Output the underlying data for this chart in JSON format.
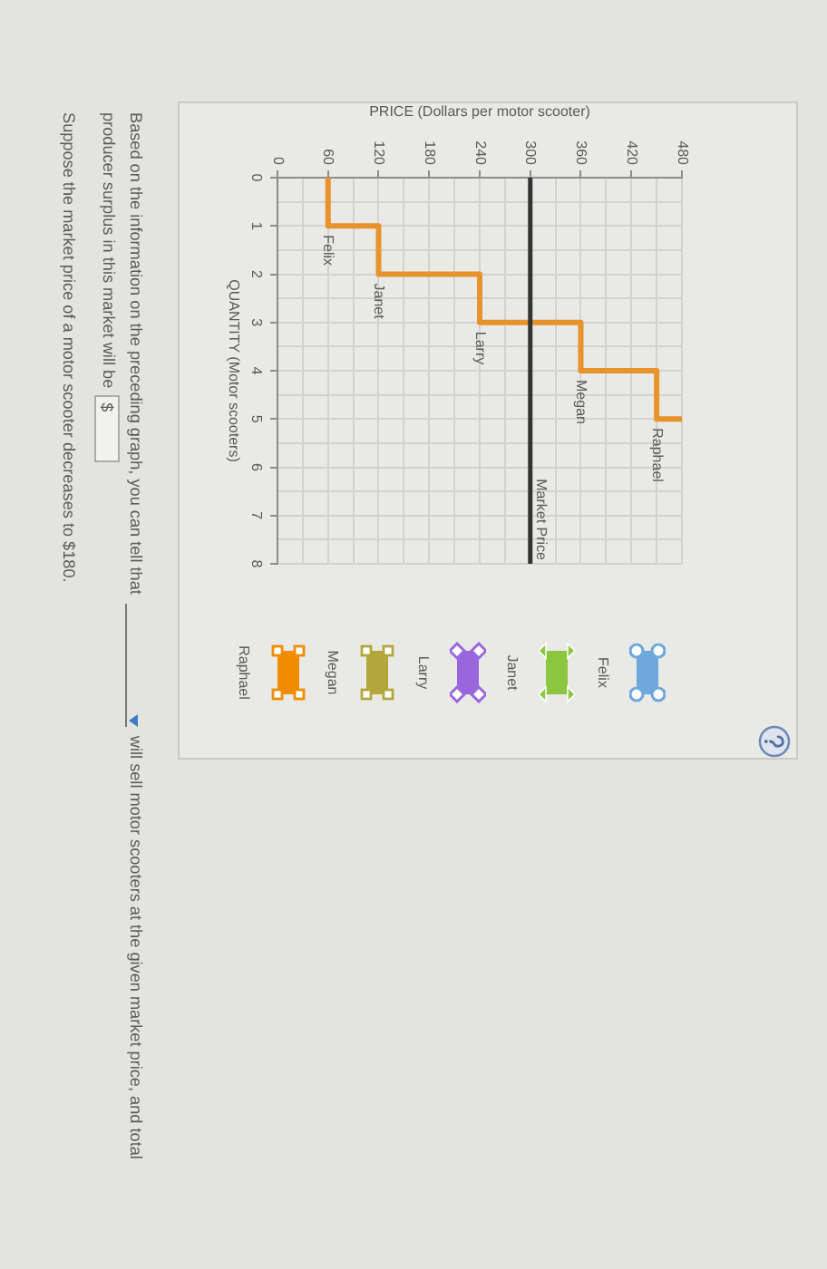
{
  "chart_data": {
    "type": "line",
    "xlabel": "PRICE (Dollars per motor scooter)",
    "ylabel": "QUANTITY (Motor scooters)",
    "x": [
      60,
      60,
      120,
      120,
      240,
      240,
      360,
      360,
      450,
      450,
      480
    ],
    "values": [
      0,
      1,
      1,
      2,
      2,
      3,
      3,
      4,
      4,
      5,
      5
    ],
    "color": "#e8922c",
    "xlim": [
      0,
      480
    ],
    "xticks": [
      0,
      {
        "value": 30,
        "label": null
      },
      60,
      {
        "value": 90,
        "label": null
      },
      120,
      {
        "value": 150,
        "label": null
      },
      180,
      {
        "value": 210,
        "label": null
      },
      240,
      {
        "value": 270,
        "label": null
      },
      300,
      {
        "value": 330,
        "label": null
      },
      360,
      {
        "value": 390,
        "label": null
      },
      420,
      {
        "value": 450,
        "label": null
      },
      480
    ],
    "ylim": [
      8,
      0
    ],
    "yticks": [
      0,
      {
        "value": 0.5,
        "label": null
      },
      1,
      {
        "value": 1.5,
        "label": null
      },
      2,
      {
        "value": 2.5,
        "label": null
      },
      3,
      {
        "value": 3.5,
        "label": null
      },
      4,
      {
        "value": 4.5,
        "label": null
      },
      5,
      {
        "value": 5.5,
        "label": null
      },
      6,
      {
        "value": 6.5,
        "label": null
      },
      7,
      {
        "value": 7.5,
        "label": null
      },
      8
    ],
    "grid": true,
    "ref_lines": [
      {
        "axis": "x",
        "value": 300,
        "label": "Market Price",
        "color": "#333333"
      }
    ],
    "annotations": [
      {
        "text": "Felix",
        "x": 60,
        "y": 1
      },
      {
        "text": "Janet",
        "x": 120,
        "y": 2
      },
      {
        "text": "Larry",
        "x": 240,
        "y": 3
      },
      {
        "text": "Megan",
        "x": 360,
        "y": 4
      },
      {
        "text": "Raphael",
        "x": 450,
        "y": 5
      },
      "Felix",
      "Janet",
      "Larry",
      "Megan",
      "Raphael",
      "Based on the information on the preceding graph, you can tell that",
      "will sell motor scooters at the given market price, and total",
      "producer surplus in this market will be",
      "$",
      "Suppose the market price of a motor scooter decreases to $180."
    ]
  }
}
